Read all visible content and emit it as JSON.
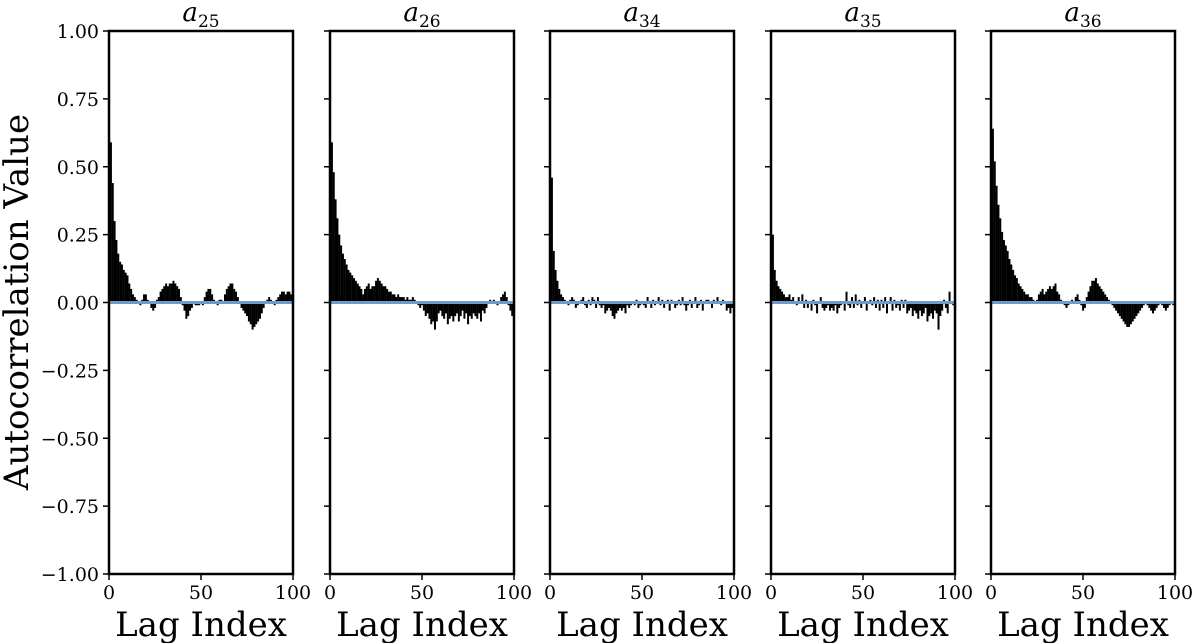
{
  "figure": {
    "ylabel": "Autocorrelation Value",
    "xlabel": "Lag Index"
  },
  "colors": {
    "bars": "#000000",
    "zero_line": "#6f9bc7",
    "axes": "#000000"
  },
  "chart_data": [
    {
      "type": "bar",
      "title": {
        "base": "a",
        "sub": "25"
      },
      "xlabel": "Lag Index",
      "ylabel": "Autocorrelation Value",
      "xlim": [
        0,
        100
      ],
      "ylim": [
        -1.0,
        1.0
      ],
      "xticks": [
        "0",
        "50",
        "100"
      ],
      "yticks": [
        "1.00",
        "0.75",
        "0.50",
        "0.25",
        "0.00",
        "−0.25",
        "−0.50",
        "−0.75",
        "−1.00"
      ],
      "grid": false,
      "x": [
        1,
        2,
        3,
        4,
        5,
        6,
        7,
        8,
        9,
        10,
        11,
        12,
        13,
        14,
        15,
        16,
        17,
        18,
        19,
        20,
        21,
        22,
        23,
        24,
        25,
        26,
        27,
        28,
        29,
        30,
        31,
        32,
        33,
        34,
        35,
        36,
        37,
        38,
        39,
        40,
        41,
        42,
        43,
        44,
        45,
        46,
        47,
        48,
        49,
        50,
        51,
        52,
        53,
        54,
        55,
        56,
        57,
        58,
        59,
        60,
        61,
        62,
        63,
        64,
        65,
        66,
        67,
        68,
        69,
        70,
        71,
        72,
        73,
        74,
        75,
        76,
        77,
        78,
        79,
        80,
        81,
        82,
        83,
        84,
        85,
        86,
        87,
        88,
        89,
        90,
        91,
        92,
        93,
        94,
        95,
        96,
        97,
        98,
        99,
        100
      ],
      "values": [
        0.59,
        0.44,
        0.3,
        0.23,
        0.18,
        0.15,
        0.14,
        0.12,
        0.11,
        0.1,
        0.07,
        0.05,
        0.03,
        0.02,
        0.01,
        0.0,
        -0.01,
        0.01,
        0.03,
        0.03,
        0.01,
        0.0,
        -0.02,
        -0.03,
        -0.02,
        0.01,
        0.02,
        0.04,
        0.05,
        0.06,
        0.07,
        0.06,
        0.07,
        0.07,
        0.08,
        0.07,
        0.06,
        0.05,
        0.02,
        -0.01,
        -0.03,
        -0.06,
        -0.05,
        -0.03,
        -0.02,
        0.0,
        -0.01,
        -0.01,
        -0.01,
        0.0,
        -0.01,
        0.02,
        0.04,
        0.05,
        0.05,
        0.03,
        0.01,
        0.0,
        -0.01,
        0.01,
        0.01,
        0.0,
        0.03,
        0.05,
        0.06,
        0.07,
        0.07,
        0.05,
        0.04,
        0.02,
        0.0,
        -0.02,
        -0.03,
        -0.04,
        -0.05,
        -0.07,
        -0.08,
        -0.1,
        -0.09,
        -0.08,
        -0.07,
        -0.06,
        -0.04,
        -0.02,
        0.0,
        0.01,
        0.02,
        0.01,
        0.0,
        -0.01,
        0.01,
        0.02,
        0.03,
        0.04,
        0.04,
        0.03,
        0.04,
        0.04,
        0.03,
        0.04
      ]
    },
    {
      "type": "bar",
      "title": {
        "base": "a",
        "sub": "26"
      },
      "xlabel": "Lag Index",
      "ylabel": "",
      "xlim": [
        0,
        100
      ],
      "ylim": [
        -1.0,
        1.0
      ],
      "xticks": [
        "0",
        "50",
        "100"
      ],
      "yticks": [],
      "grid": false,
      "x": [
        1,
        2,
        3,
        4,
        5,
        6,
        7,
        8,
        9,
        10,
        11,
        12,
        13,
        14,
        15,
        16,
        17,
        18,
        19,
        20,
        21,
        22,
        23,
        24,
        25,
        26,
        27,
        28,
        29,
        30,
        31,
        32,
        33,
        34,
        35,
        36,
        37,
        38,
        39,
        40,
        41,
        42,
        43,
        44,
        45,
        46,
        47,
        48,
        49,
        50,
        51,
        52,
        53,
        54,
        55,
        56,
        57,
        58,
        59,
        60,
        61,
        62,
        63,
        64,
        65,
        66,
        67,
        68,
        69,
        70,
        71,
        72,
        73,
        74,
        75,
        76,
        77,
        78,
        79,
        80,
        81,
        82,
        83,
        84,
        85,
        86,
        87,
        88,
        89,
        90,
        91,
        92,
        93,
        94,
        95,
        96,
        97,
        98,
        99,
        100
      ],
      "values": [
        0.59,
        0.48,
        0.38,
        0.31,
        0.25,
        0.21,
        0.18,
        0.16,
        0.14,
        0.12,
        0.11,
        0.1,
        0.09,
        0.08,
        0.07,
        0.06,
        0.05,
        0.03,
        0.05,
        0.06,
        0.07,
        0.05,
        0.06,
        0.06,
        0.08,
        0.09,
        0.08,
        0.07,
        0.06,
        0.06,
        0.05,
        0.04,
        0.04,
        0.03,
        0.03,
        0.02,
        0.03,
        0.02,
        0.02,
        0.02,
        0.01,
        0.02,
        0.01,
        0.01,
        0.02,
        0.01,
        0.0,
        -0.01,
        -0.02,
        -0.01,
        -0.03,
        -0.05,
        -0.04,
        -0.06,
        -0.08,
        -0.07,
        -0.1,
        -0.07,
        -0.04,
        -0.03,
        -0.05,
        -0.06,
        -0.04,
        -0.08,
        -0.06,
        -0.05,
        -0.07,
        -0.05,
        -0.04,
        -0.07,
        -0.05,
        -0.03,
        -0.06,
        -0.04,
        -0.08,
        -0.05,
        -0.06,
        -0.04,
        -0.05,
        -0.06,
        -0.04,
        -0.07,
        -0.03,
        -0.04,
        -0.02,
        0.0,
        0.01,
        0.0,
        0.01,
        0.0,
        -0.01,
        0.0,
        0.02,
        0.03,
        0.04,
        0.02,
        -0.01,
        -0.03,
        -0.05,
        -0.04
      ]
    },
    {
      "type": "bar",
      "title": {
        "base": "a",
        "sub": "34"
      },
      "xlabel": "Lag Index",
      "ylabel": "",
      "xlim": [
        0,
        100
      ],
      "ylim": [
        -1.0,
        1.0
      ],
      "xticks": [
        "0",
        "50",
        "100"
      ],
      "yticks": [],
      "grid": false,
      "x": [
        1,
        2,
        3,
        4,
        5,
        6,
        7,
        8,
        9,
        10,
        11,
        12,
        13,
        14,
        15,
        16,
        17,
        18,
        19,
        20,
        21,
        22,
        23,
        24,
        25,
        26,
        27,
        28,
        29,
        30,
        31,
        32,
        33,
        34,
        35,
        36,
        37,
        38,
        39,
        40,
        41,
        42,
        43,
        44,
        45,
        46,
        47,
        48,
        49,
        50,
        51,
        52,
        53,
        54,
        55,
        56,
        57,
        58,
        59,
        60,
        61,
        62,
        63,
        64,
        65,
        66,
        67,
        68,
        69,
        70,
        71,
        72,
        73,
        74,
        75,
        76,
        77,
        78,
        79,
        80,
        81,
        82,
        83,
        84,
        85,
        86,
        87,
        88,
        89,
        90,
        91,
        92,
        93,
        94,
        95,
        96,
        97,
        98,
        99,
        100
      ],
      "values": [
        0.46,
        0.19,
        0.12,
        0.08,
        0.05,
        0.03,
        0.02,
        0.01,
        0.0,
        -0.01,
        0.01,
        0.02,
        0.01,
        -0.02,
        -0.01,
        0.0,
        0.01,
        0.02,
        -0.01,
        -0.02,
        0.01,
        -0.01,
        0.02,
        0.01,
        -0.02,
        0.02,
        -0.01,
        -0.02,
        -0.01,
        -0.04,
        -0.03,
        -0.02,
        -0.03,
        -0.05,
        -0.06,
        -0.04,
        -0.03,
        -0.02,
        -0.03,
        -0.02,
        -0.04,
        -0.01,
        -0.02,
        -0.01,
        0.0,
        -0.01,
        0.01,
        -0.02,
        -0.01,
        0.0,
        -0.01,
        -0.02,
        0.02,
        0.0,
        -0.02,
        0.01,
        -0.01,
        0.0,
        0.02,
        -0.01,
        0.01,
        -0.02,
        0.0,
        0.01,
        -0.03,
        0.01,
        0.0,
        -0.02,
        -0.01,
        0.01,
        -0.01,
        0.02,
        -0.01,
        -0.03,
        -0.01,
        0.01,
        -0.02,
        0.0,
        0.02,
        -0.02,
        -0.01,
        0.01,
        -0.03,
        0.0,
        0.01,
        0.01,
        0.0,
        -0.02,
        0.01,
        0.0,
        0.02,
        0.0,
        -0.01,
        0.01,
        0.0,
        -0.03,
        -0.02,
        -0.04,
        -0.02,
        -0.05
      ]
    },
    {
      "type": "bar",
      "title": {
        "base": "a",
        "sub": "35"
      },
      "xlabel": "Lag Index",
      "ylabel": "",
      "xlim": [
        0,
        100
      ],
      "ylim": [
        -1.0,
        1.0
      ],
      "xticks": [
        "0",
        "50",
        "100"
      ],
      "yticks": [],
      "grid": false,
      "x": [
        1,
        2,
        3,
        4,
        5,
        6,
        7,
        8,
        9,
        10,
        11,
        12,
        13,
        14,
        15,
        16,
        17,
        18,
        19,
        20,
        21,
        22,
        23,
        24,
        25,
        26,
        27,
        28,
        29,
        30,
        31,
        32,
        33,
        34,
        35,
        36,
        37,
        38,
        39,
        40,
        41,
        42,
        43,
        44,
        45,
        46,
        47,
        48,
        49,
        50,
        51,
        52,
        53,
        54,
        55,
        56,
        57,
        58,
        59,
        60,
        61,
        62,
        63,
        64,
        65,
        66,
        67,
        68,
        69,
        70,
        71,
        72,
        73,
        74,
        75,
        76,
        77,
        78,
        79,
        80,
        81,
        82,
        83,
        84,
        85,
        86,
        87,
        88,
        89,
        90,
        91,
        92,
        93,
        94,
        95,
        96,
        97,
        98,
        99,
        100
      ],
      "values": [
        0.25,
        0.12,
        0.08,
        0.06,
        0.05,
        0.04,
        0.03,
        0.02,
        0.02,
        0.03,
        0.01,
        0.02,
        0.0,
        -0.01,
        0.02,
        0.0,
        0.03,
        -0.02,
        0.01,
        -0.02,
        0.0,
        -0.03,
        0.01,
        -0.01,
        -0.04,
        0.0,
        0.02,
        -0.02,
        -0.03,
        -0.02,
        -0.01,
        -0.03,
        -0.02,
        -0.03,
        -0.01,
        -0.04,
        -0.02,
        -0.01,
        0.0,
        -0.03,
        0.04,
        -0.01,
        -0.02,
        0.02,
        -0.02,
        0.03,
        -0.01,
        0.01,
        -0.02,
        0.0,
        0.02,
        -0.03,
        0.0,
        0.01,
        -0.01,
        0.02,
        -0.02,
        0.01,
        -0.03,
        0.01,
        -0.02,
        0.02,
        -0.04,
        0.0,
        0.02,
        -0.03,
        0.01,
        -0.02,
        -0.01,
        -0.03,
        0.01,
        -0.02,
        0.01,
        -0.04,
        -0.03,
        -0.02,
        -0.05,
        -0.03,
        -0.04,
        -0.06,
        -0.03,
        -0.05,
        -0.04,
        -0.02,
        -0.07,
        -0.05,
        -0.04,
        -0.06,
        -0.03,
        -0.04,
        -0.1,
        -0.05,
        -0.03,
        0.01,
        -0.02,
        -0.04,
        0.04,
        0.0,
        -0.01,
        -0.03
      ]
    },
    {
      "type": "bar",
      "title": {
        "base": "a",
        "sub": "36"
      },
      "xlabel": "Lag Index",
      "ylabel": "",
      "xlim": [
        0,
        100
      ],
      "ylim": [
        -1.0,
        1.0
      ],
      "xticks": [
        "0",
        "50",
        "100"
      ],
      "yticks": [],
      "grid": false,
      "x": [
        1,
        2,
        3,
        4,
        5,
        6,
        7,
        8,
        9,
        10,
        11,
        12,
        13,
        14,
        15,
        16,
        17,
        18,
        19,
        20,
        21,
        22,
        23,
        24,
        25,
        26,
        27,
        28,
        29,
        30,
        31,
        32,
        33,
        34,
        35,
        36,
        37,
        38,
        39,
        40,
        41,
        42,
        43,
        44,
        45,
        46,
        47,
        48,
        49,
        50,
        51,
        52,
        53,
        54,
        55,
        56,
        57,
        58,
        59,
        60,
        61,
        62,
        63,
        64,
        65,
        66,
        67,
        68,
        69,
        70,
        71,
        72,
        73,
        74,
        75,
        76,
        77,
        78,
        79,
        80,
        81,
        82,
        83,
        84,
        85,
        86,
        87,
        88,
        89,
        90,
        91,
        92,
        93,
        94,
        95,
        96,
        97,
        98,
        99,
        100
      ],
      "values": [
        0.64,
        0.52,
        0.43,
        0.36,
        0.31,
        0.26,
        0.23,
        0.21,
        0.19,
        0.16,
        0.14,
        0.12,
        0.1,
        0.09,
        0.07,
        0.06,
        0.05,
        0.04,
        0.03,
        0.03,
        0.02,
        0.02,
        0.01,
        0.0,
        0.01,
        0.03,
        0.04,
        0.05,
        0.03,
        0.04,
        0.05,
        0.06,
        0.05,
        0.06,
        0.07,
        0.04,
        0.03,
        0.01,
        0.0,
        -0.01,
        -0.02,
        -0.01,
        0.0,
        0.01,
        0.0,
        0.02,
        0.03,
        0.01,
        -0.01,
        -0.03,
        -0.02,
        0.02,
        0.04,
        0.06,
        0.08,
        0.08,
        0.09,
        0.07,
        0.06,
        0.05,
        0.04,
        0.03,
        0.02,
        0.01,
        0.0,
        -0.01,
        -0.02,
        -0.03,
        -0.04,
        -0.05,
        -0.06,
        -0.07,
        -0.08,
        -0.09,
        -0.09,
        -0.08,
        -0.07,
        -0.06,
        -0.05,
        -0.04,
        -0.03,
        -0.02,
        -0.01,
        0.0,
        -0.01,
        -0.02,
        -0.03,
        -0.04,
        -0.03,
        -0.02,
        -0.01,
        0.0,
        -0.01,
        -0.02,
        -0.03,
        -0.02,
        -0.01,
        0.0,
        -0.01,
        0.0
      ]
    }
  ]
}
